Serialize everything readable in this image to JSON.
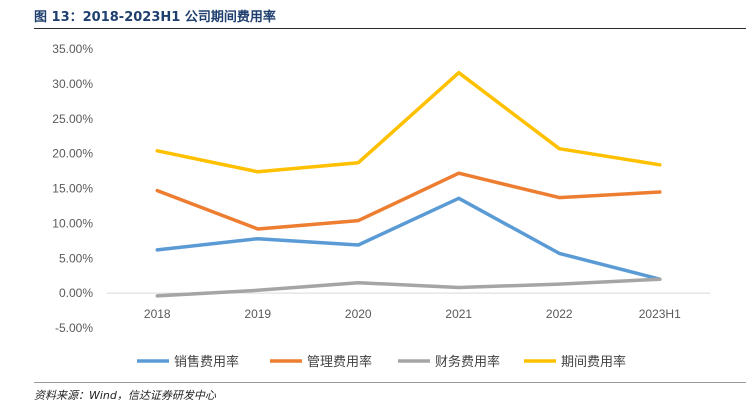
{
  "figure_title": "图 13：2018-2023H1 公司期间费用率",
  "source_note": "资料来源：Wind，信达证券研发中心",
  "chart_data": {
    "type": "line",
    "categories": [
      "2018",
      "2019",
      "2020",
      "2021",
      "2022",
      "2023H1"
    ],
    "ylim": [
      -0.05,
      0.35
    ],
    "ytick_step": 0.05,
    "yticks": [
      "35.00%",
      "30.00%",
      "25.00%",
      "20.00%",
      "15.00%",
      "10.00%",
      "5.00%",
      "0.00%",
      "-5.00%"
    ],
    "grid": false,
    "legend_position": "bottom",
    "series": [
      {
        "name": "销售费用率",
        "color": "#5b9bd5",
        "values": [
          0.062,
          0.078,
          0.069,
          0.136,
          0.057,
          0.02
        ]
      },
      {
        "name": "管理费用率",
        "color": "#ed7d31",
        "values": [
          0.147,
          0.092,
          0.104,
          0.172,
          0.137,
          0.145
        ]
      },
      {
        "name": "财务费用率",
        "color": "#a5a5a5",
        "values": [
          -0.004,
          0.004,
          0.015,
          0.008,
          0.013,
          0.02
        ]
      },
      {
        "name": "期间费用率",
        "color": "#ffc000",
        "values": [
          0.204,
          0.174,
          0.187,
          0.316,
          0.207,
          0.184
        ]
      }
    ]
  }
}
